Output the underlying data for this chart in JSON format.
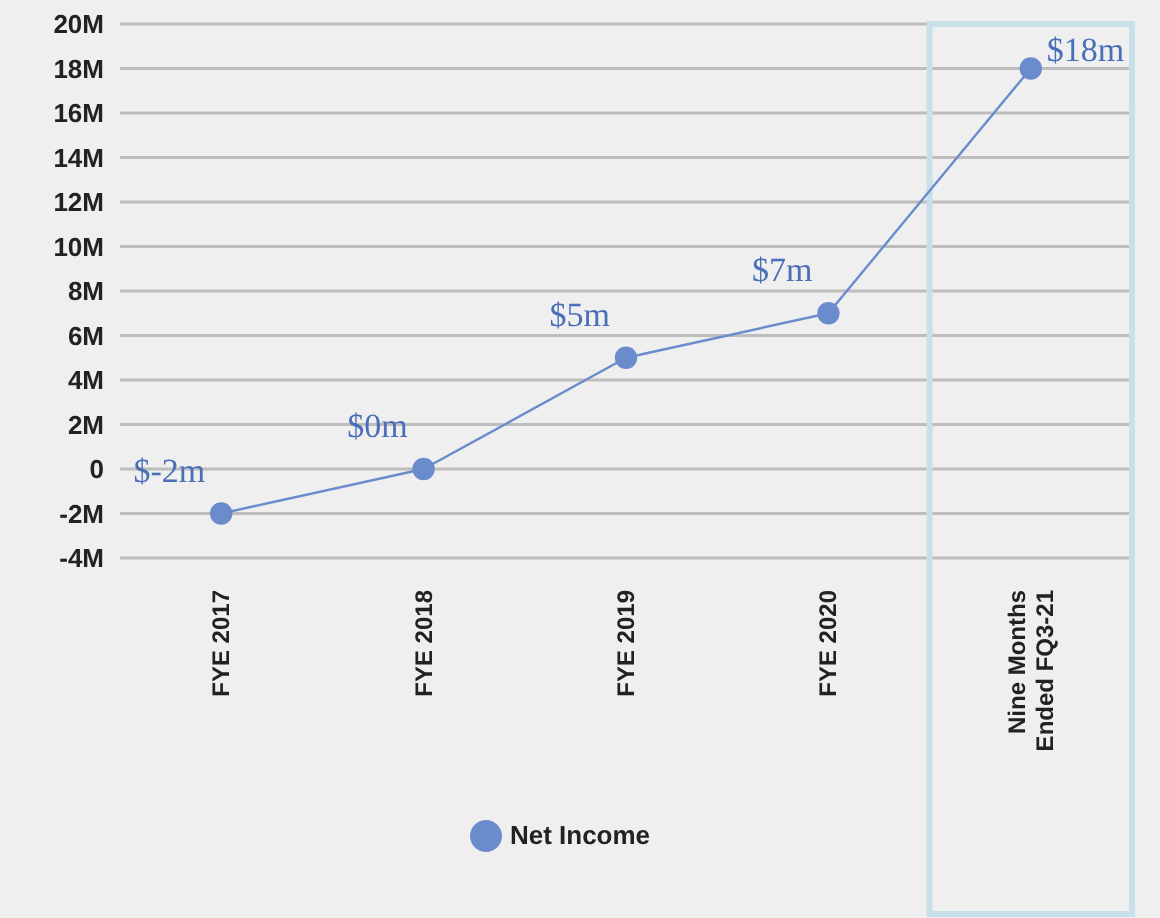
{
  "chart_data": {
    "type": "line",
    "categories": [
      "FYE 2017",
      "FYE 2018",
      "FYE 2019",
      "FYE 2020",
      "Nine Months Ended FQ3-21"
    ],
    "series": [
      {
        "name": "Net Income",
        "color": "#6a8ccc",
        "values": [
          -2,
          0,
          5,
          7,
          18
        ],
        "value_labels": [
          "$-2m",
          "$0m",
          "$5m",
          "$7m",
          "$18m"
        ]
      }
    ],
    "ylim": [
      -4,
      20
    ],
    "yticks": [
      {
        "value": -4,
        "label": "-4M"
      },
      {
        "value": -2,
        "label": "-2M"
      },
      0,
      {
        "value": 2,
        "label": "2M"
      },
      {
        "value": 4,
        "label": "4M"
      },
      {
        "value": 6,
        "label": "6M"
      },
      {
        "value": 8,
        "label": "8M"
      },
      {
        "value": 10,
        "label": "10M"
      },
      {
        "value": 12,
        "label": "12M"
      },
      {
        "value": 14,
        "label": "14M"
      },
      {
        "value": 16,
        "label": "16M"
      },
      {
        "value": 18,
        "label": "18M"
      },
      {
        "value": 20,
        "label": "20M"
      }
    ],
    "grid": "y",
    "legend": "bottom",
    "marker": "circle",
    "line_style": "solid"
  }
}
